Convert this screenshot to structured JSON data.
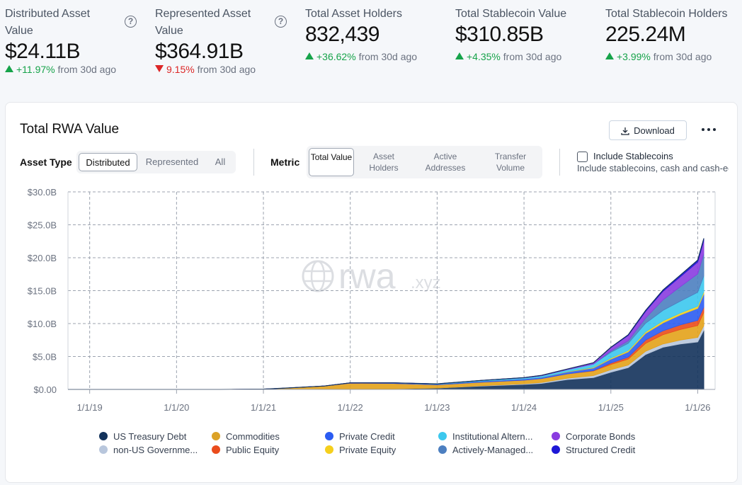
{
  "stats": [
    {
      "label": "Distributed Asset Value",
      "value": "$24.11B",
      "change": "+11.97%",
      "direction": "up",
      "suffix": "from 30d ago",
      "has_help": true
    },
    {
      "label": "Represented Asset Value",
      "value": "$364.91B",
      "change": "9.15%",
      "direction": "down",
      "suffix": "from 30d ago",
      "has_help": true
    },
    {
      "label": "Total Asset Holders",
      "value": "832,439",
      "change": "+36.62%",
      "direction": "up",
      "suffix": "from 30d ago",
      "has_help": false
    },
    {
      "label": "Total Stablecoin Value",
      "value": "$310.85B",
      "change": "+4.35%",
      "direction": "up",
      "suffix": "from 30d ago",
      "has_help": false
    },
    {
      "label": "Total Stablecoin Holders",
      "value": "225.24M",
      "change": "+3.99%",
      "direction": "up",
      "suffix": "from 30d ago",
      "has_help": false
    }
  ],
  "card": {
    "title": "Total RWA Value",
    "download_label": "Download",
    "asset_type_label": "Asset Type",
    "asset_types": [
      "Distributed",
      "Represented",
      "All"
    ],
    "asset_type_selected": "Distributed",
    "metric_label": "Metric",
    "metrics": [
      "Total Value",
      "Asset Holders",
      "Active Addresses",
      "Transfer Volume"
    ],
    "metric_selected": "Total Value",
    "include_stablecoins_label": "Include Stablecoins",
    "include_stablecoins_sub": "Include stablecoins, cash and cash-ec",
    "include_stablecoins_checked": false,
    "watermark": "rwa",
    "watermark_suffix": ".xyz"
  },
  "colors": {
    "up": "#16a34a",
    "down": "#dc2626",
    "grid": "#9ca3af",
    "axis_text": "#6b7280"
  },
  "chart_data": {
    "type": "area",
    "stacked": true,
    "title": "Total RWA Value",
    "xlabel": "",
    "ylabel": "",
    "ylim": [
      0,
      30
    ],
    "y_unit": "B",
    "yticks": [
      0,
      5,
      10,
      15,
      20,
      25,
      30
    ],
    "ytick_labels": [
      "$0.00",
      "$5.0B",
      "$10.0B",
      "$15.0B",
      "$20.0B",
      "$25.0B",
      "$30.0B"
    ],
    "xlim": [
      2018.75,
      2026.2
    ],
    "xticks": [
      2019,
      2020,
      2021,
      2022,
      2023,
      2024,
      2025,
      2026
    ],
    "xtick_labels": [
      "1/1/19",
      "1/1/20",
      "1/1/21",
      "1/1/22",
      "1/1/23",
      "1/1/24",
      "1/1/25",
      "1/1/26"
    ],
    "x": [
      2018.75,
      2019.5,
      2020.5,
      2021.0,
      2021.25,
      2021.7,
      2022.0,
      2022.5,
      2023.0,
      2023.5,
      2024.0,
      2024.2,
      2024.5,
      2024.8,
      2025.0,
      2025.2,
      2025.4,
      2025.6,
      2025.8,
      2026.0,
      2026.07
    ],
    "series": [
      {
        "name": "US Treasury Debt",
        "color": "#13325b",
        "values": [
          0,
          0,
          0,
          0,
          0,
          0.02,
          0.05,
          0.1,
          0.2,
          0.5,
          0.75,
          0.9,
          1.5,
          1.8,
          2.6,
          3.3,
          5.3,
          6.4,
          6.9,
          7.2,
          9.0
        ]
      },
      {
        "name": "non-US Government Debt",
        "color": "#b8c6dc",
        "values": [
          0,
          0,
          0,
          0,
          0,
          0,
          0,
          0,
          0,
          0.05,
          0.1,
          0.15,
          0.2,
          0.3,
          0.4,
          0.4,
          0.5,
          0.5,
          0.6,
          0.7,
          0.7
        ]
      },
      {
        "name": "Commodities",
        "color": "#e3a21a",
        "values": [
          0,
          0,
          0,
          0.05,
          0.2,
          0.5,
          0.9,
          0.8,
          0.5,
          0.55,
          0.55,
          0.6,
          0.65,
          0.7,
          0.8,
          0.9,
          1.2,
          1.4,
          1.6,
          1.8,
          2.0
        ]
      },
      {
        "name": "Public Equity",
        "color": "#ea4c1c",
        "values": [
          0,
          0,
          0,
          0,
          0,
          0,
          0,
          0,
          0,
          0,
          0,
          0,
          0,
          0.05,
          0.2,
          0.3,
          0.5,
          0.6,
          0.7,
          0.8,
          0.8
        ]
      },
      {
        "name": "Private Credit",
        "color": "#2b5cf2",
        "values": [
          0,
          0,
          0,
          0,
          0,
          0,
          0.05,
          0.1,
          0.1,
          0.15,
          0.2,
          0.2,
          0.3,
          0.4,
          0.6,
          0.8,
          1.0,
          1.2,
          1.5,
          1.8,
          2.0
        ]
      },
      {
        "name": "Private Equity",
        "color": "#f5cf1d",
        "values": [
          0,
          0,
          0,
          0,
          0,
          0,
          0,
          0,
          0,
          0,
          0,
          0,
          0.05,
          0.1,
          0.15,
          0.2,
          0.25,
          0.3,
          0.3,
          0.35,
          0.35
        ]
      },
      {
        "name": "Institutional Alternative Funds",
        "color": "#3cc8ee",
        "values": [
          0,
          0,
          0,
          0,
          0,
          0,
          0,
          0,
          0.05,
          0.1,
          0.15,
          0.2,
          0.3,
          0.5,
          0.9,
          1.1,
          1.3,
          1.6,
          1.8,
          2.1,
          2.4
        ]
      },
      {
        "name": "Actively-Managed Strategies",
        "color": "#4c7fc0",
        "values": [
          0,
          0,
          0,
          0,
          0,
          0,
          0,
          0,
          0,
          0,
          0,
          0,
          0,
          0,
          0.2,
          0.4,
          0.8,
          1.6,
          2.2,
          2.8,
          3.4
        ]
      },
      {
        "name": "Corporate Bonds",
        "color": "#8a3ce0",
        "values": [
          0,
          0,
          0,
          0,
          0,
          0,
          0,
          0,
          0,
          0.02,
          0.05,
          0.08,
          0.1,
          0.2,
          0.5,
          0.8,
          1.0,
          1.3,
          1.5,
          1.8,
          2.0
        ]
      },
      {
        "name": "Structured Credit",
        "color": "#1d17d6",
        "values": [
          0,
          0,
          0,
          0,
          0,
          0,
          0,
          0,
          0,
          0,
          0,
          0,
          0,
          0,
          0.05,
          0.1,
          0.15,
          0.2,
          0.25,
          0.3,
          0.3
        ]
      }
    ],
    "legend": [
      {
        "label": "US Treasury Debt",
        "color": "#13325b"
      },
      {
        "label": "Commodities",
        "color": "#dca227"
      },
      {
        "label": "Private Credit",
        "color": "#2b5cf2"
      },
      {
        "label": "Institutional Altern...",
        "color": "#3cc8ee"
      },
      {
        "label": "Corporate Bonds",
        "color": "#8a3ce0"
      },
      {
        "label": "non-US Governme...",
        "color": "#b8c6dc"
      },
      {
        "label": "Public Equity",
        "color": "#ea4c1c"
      },
      {
        "label": "Private Equity",
        "color": "#f5cf1d"
      },
      {
        "label": "Actively-Managed...",
        "color": "#4c7fc0"
      },
      {
        "label": "Structured Credit",
        "color": "#1d17d6"
      }
    ],
    "legend_position": "bottom"
  }
}
